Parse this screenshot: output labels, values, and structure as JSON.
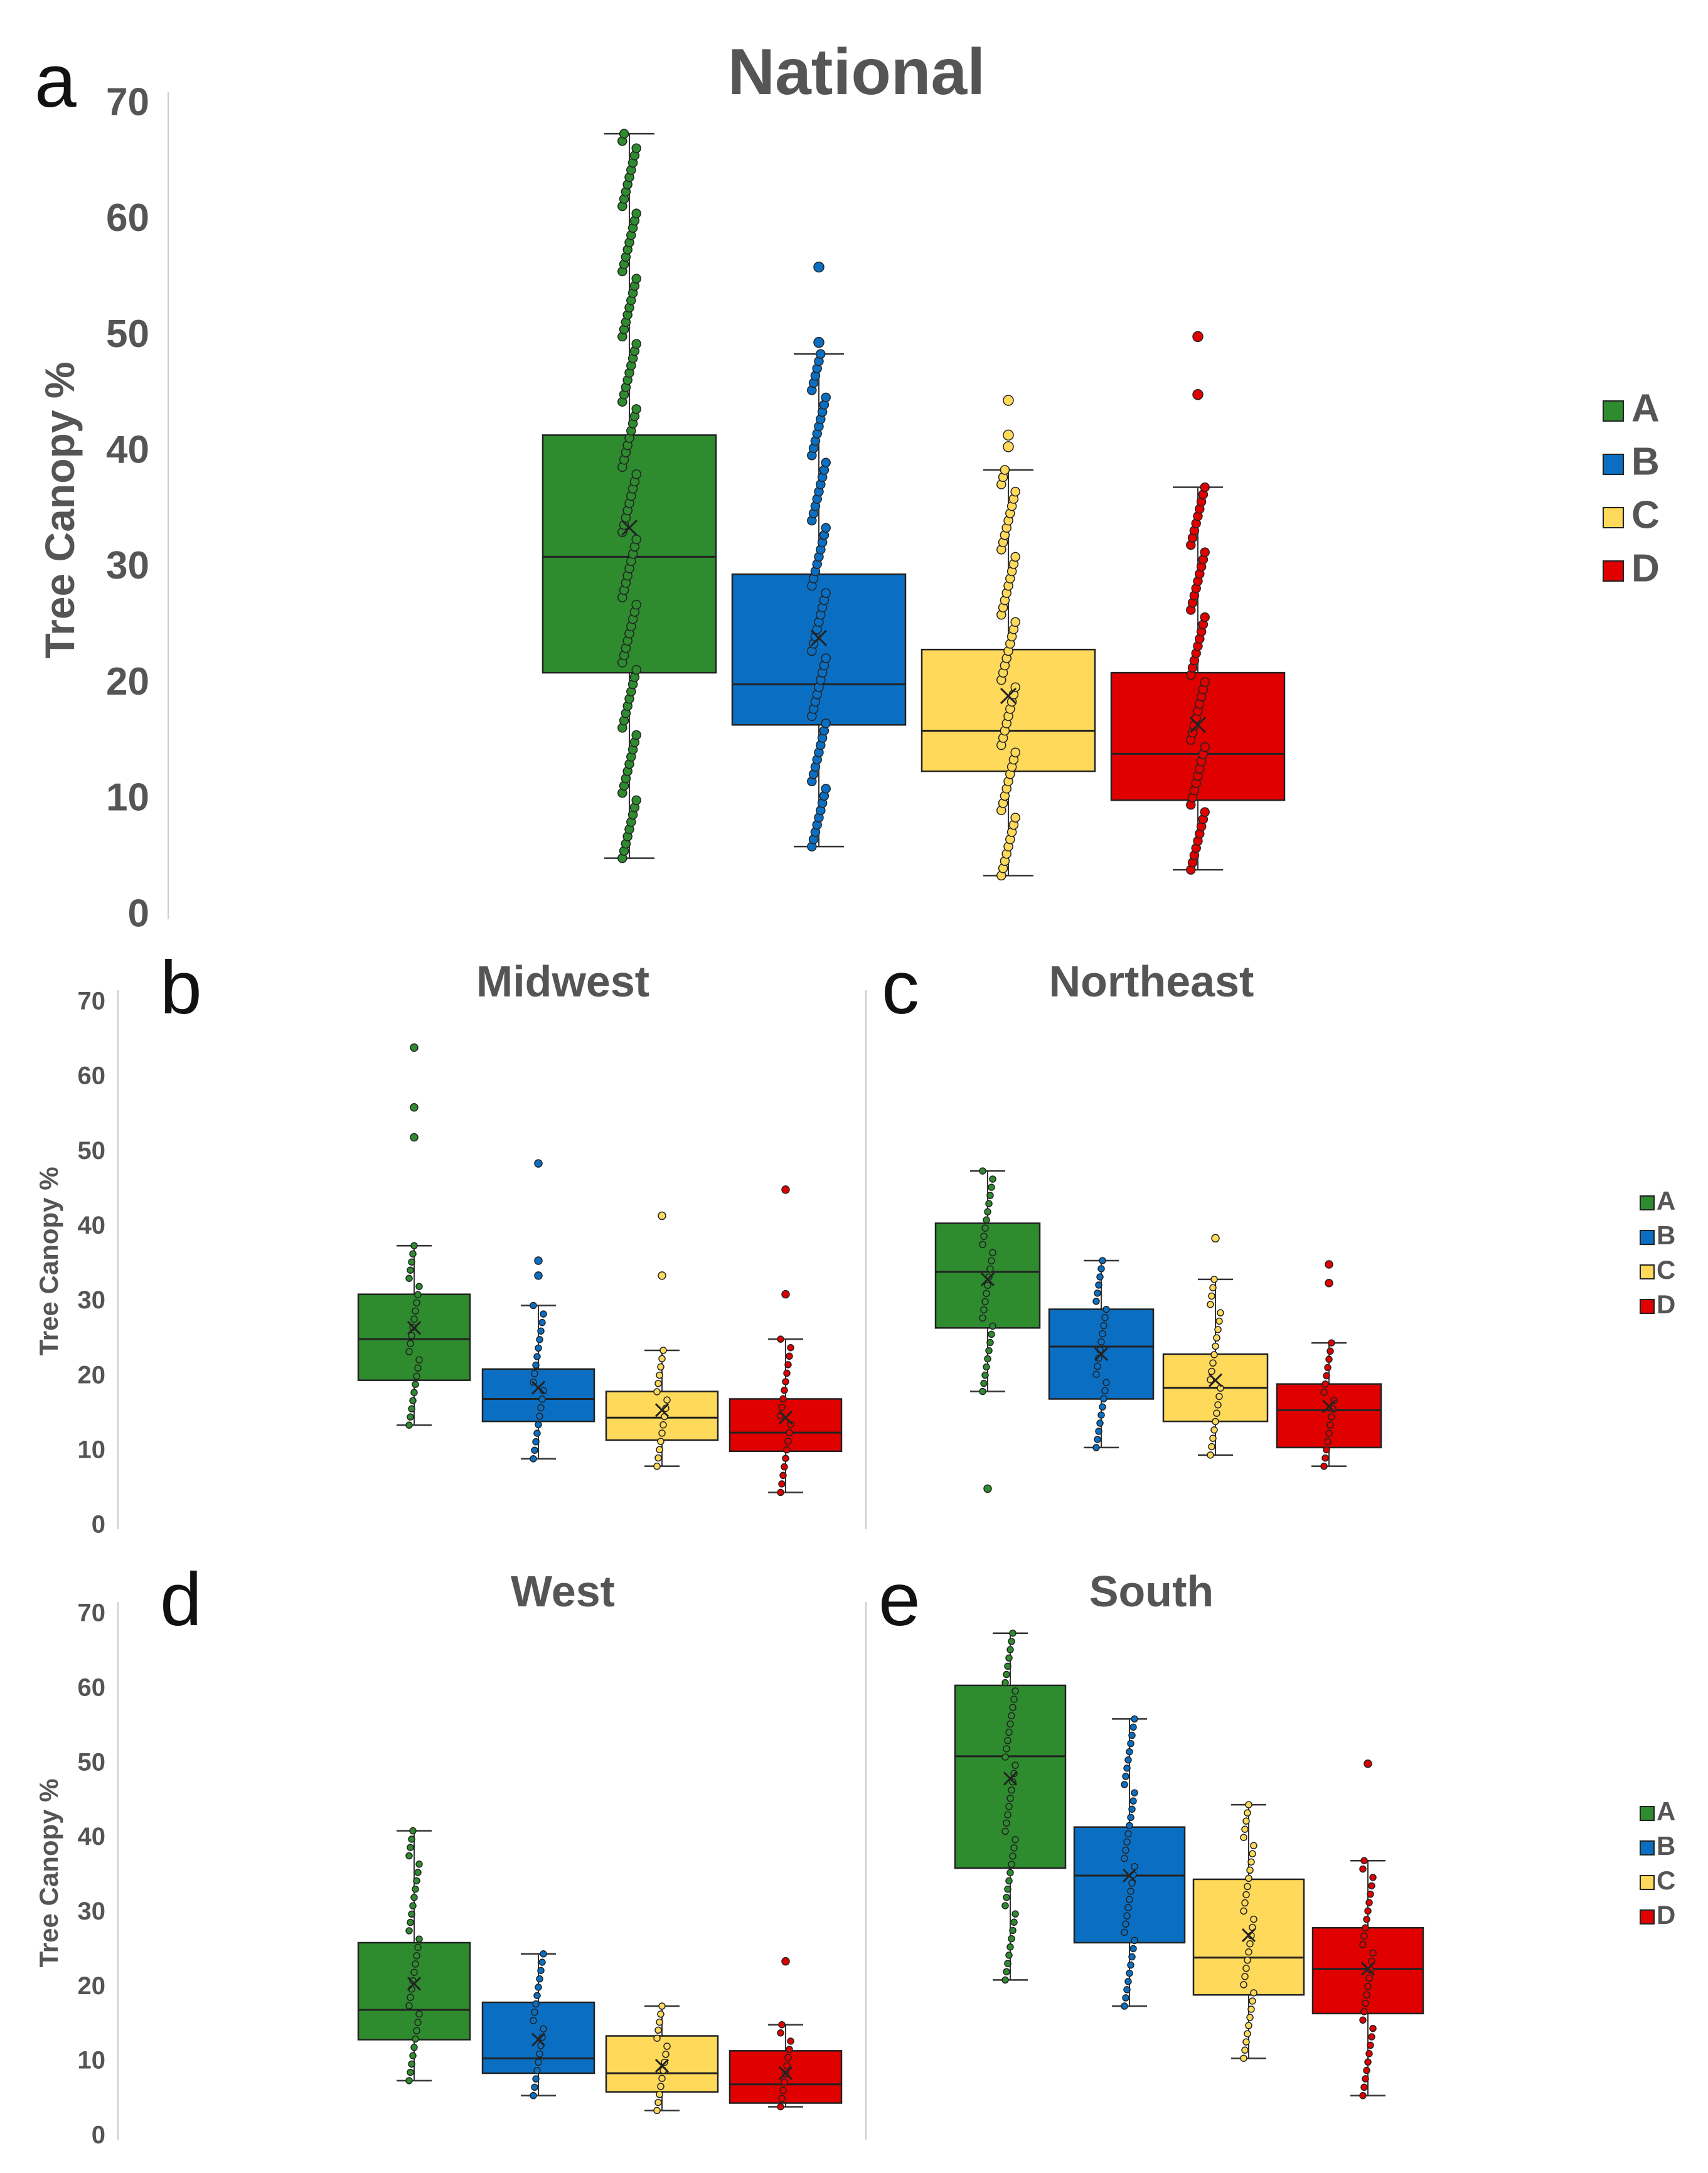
{
  "legend": {
    "entries": [
      {
        "label": "A",
        "color": "#2e8b2e"
      },
      {
        "label": "B",
        "color": "#0a6fc2"
      },
      {
        "label": "C",
        "color": "#ffd95a"
      },
      {
        "label": "D",
        "color": "#e00000"
      }
    ]
  },
  "chart_data": [
    {
      "panel": "a",
      "type": "box",
      "title": "National",
      "ylabel": "Tree Canopy %",
      "ylim": [
        0,
        70
      ],
      "yticks": [
        0,
        10,
        20,
        30,
        40,
        50,
        60,
        70
      ],
      "categories": [
        "A",
        "B",
        "C",
        "D"
      ],
      "series": [
        {
          "name": "A",
          "min": 5,
          "q1": 21,
          "median": 31,
          "q3": 41.5,
          "max": 67.5,
          "mean": 33.5,
          "outliers": []
        },
        {
          "name": "B",
          "min": 6,
          "q1": 16.5,
          "median": 20,
          "q3": 29.5,
          "max": 48.5,
          "mean": 24,
          "outliers": [
            49.5,
            56
          ]
        },
        {
          "name": "C",
          "min": 3.5,
          "q1": 12.5,
          "median": 16,
          "q3": 23,
          "max": 38.5,
          "mean": 19,
          "outliers": [
            40.5,
            41.5,
            44.5
          ]
        },
        {
          "name": "D",
          "min": 4,
          "q1": 10,
          "median": 14,
          "q3": 21,
          "max": 37,
          "mean": 16.5,
          "outliers": [
            45,
            50
          ]
        }
      ]
    },
    {
      "panel": "b",
      "type": "box",
      "title": "Midwest",
      "ylabel": "Tree Canopy %",
      "ylim": [
        0,
        70
      ],
      "yticks": [
        0,
        10,
        20,
        30,
        40,
        50,
        60,
        70
      ],
      "categories": [
        "A",
        "B",
        "C",
        "D"
      ],
      "series": [
        {
          "name": "A",
          "min": 13.5,
          "q1": 19.5,
          "median": 25,
          "q3": 31,
          "max": 37.5,
          "mean": 26.5,
          "outliers": [
            52,
            56,
            64
          ]
        },
        {
          "name": "B",
          "min": 9,
          "q1": 14,
          "median": 17,
          "q3": 21,
          "max": 29.5,
          "mean": 18.5,
          "outliers": [
            33.5,
            35.5,
            48.5
          ]
        },
        {
          "name": "C",
          "min": 8,
          "q1": 11.5,
          "median": 14.5,
          "q3": 18,
          "max": 23.5,
          "mean": 15.5,
          "outliers": [
            33.5,
            41.5
          ]
        },
        {
          "name": "D",
          "min": 4.5,
          "q1": 10,
          "median": 12.5,
          "q3": 17,
          "max": 25,
          "mean": 14.5,
          "outliers": [
            31,
            45
          ]
        }
      ]
    },
    {
      "panel": "c",
      "type": "box",
      "title": "Northeast",
      "ylabel": "Tree Canopy %",
      "ylim": [
        0,
        70
      ],
      "yticks": [
        0,
        10,
        20,
        30,
        40,
        50,
        60,
        70
      ],
      "categories": [
        "A",
        "B",
        "C",
        "D"
      ],
      "series": [
        {
          "name": "A",
          "min": 18,
          "q1": 26.5,
          "median": 34,
          "q3": 40.5,
          "max": 47.5,
          "mean": 33,
          "outliers": [
            5
          ]
        },
        {
          "name": "B",
          "min": 10.5,
          "q1": 17,
          "median": 24,
          "q3": 29,
          "max": 35.5,
          "mean": 23,
          "outliers": []
        },
        {
          "name": "C",
          "min": 9.5,
          "q1": 14,
          "median": 18.5,
          "q3": 23,
          "max": 33,
          "mean": 19.5,
          "outliers": [
            38.5
          ]
        },
        {
          "name": "D",
          "min": 8,
          "q1": 10.5,
          "median": 15.5,
          "q3": 19,
          "max": 24.5,
          "mean": 16,
          "outliers": [
            32.5,
            35
          ]
        }
      ]
    },
    {
      "panel": "d",
      "type": "box",
      "title": "West",
      "ylabel": "Tree Canopy %",
      "ylim": [
        0,
        70
      ],
      "yticks": [
        0,
        10,
        20,
        30,
        40,
        50,
        60,
        70
      ],
      "categories": [
        "A",
        "B",
        "C",
        "D"
      ],
      "series": [
        {
          "name": "A",
          "min": 7.5,
          "q1": 13,
          "median": 17,
          "q3": 26,
          "max": 41,
          "mean": 20.5,
          "outliers": []
        },
        {
          "name": "B",
          "min": 5.5,
          "q1": 8.5,
          "median": 10.5,
          "q3": 18,
          "max": 24.5,
          "mean": 13,
          "outliers": []
        },
        {
          "name": "C",
          "min": 3.5,
          "q1": 6,
          "median": 8.5,
          "q3": 13.5,
          "max": 17.5,
          "mean": 9.5,
          "outliers": []
        },
        {
          "name": "D",
          "min": 4,
          "q1": 4.5,
          "median": 7,
          "q3": 11.5,
          "max": 15,
          "mean": 8.5,
          "outliers": [
            23.5
          ]
        }
      ]
    },
    {
      "panel": "e",
      "type": "box",
      "title": "South",
      "ylabel": "Tree Canopy %",
      "ylim": [
        0,
        70
      ],
      "yticks": [
        0,
        10,
        20,
        30,
        40,
        50,
        60,
        70
      ],
      "categories": [
        "A",
        "B",
        "C",
        "D"
      ],
      "series": [
        {
          "name": "A",
          "min": 21,
          "q1": 36,
          "median": 51,
          "q3": 60.5,
          "max": 67.5,
          "mean": 48,
          "outliers": []
        },
        {
          "name": "B",
          "min": 17.5,
          "q1": 26,
          "median": 35,
          "q3": 41.5,
          "max": 56,
          "mean": 35,
          "outliers": []
        },
        {
          "name": "C",
          "min": 10.5,
          "q1": 19,
          "median": 24,
          "q3": 34.5,
          "max": 44.5,
          "mean": 27,
          "outliers": []
        },
        {
          "name": "D",
          "min": 5.5,
          "q1": 16.5,
          "median": 22.5,
          "q3": 28,
          "max": 37,
          "mean": 22.5,
          "outliers": [
            50
          ]
        }
      ]
    }
  ]
}
